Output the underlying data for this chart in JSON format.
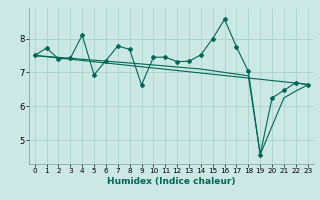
{
  "title": "",
  "xlabel": "Humidex (Indice chaleur)",
  "ylabel": "",
  "background_color": "#cce8e4",
  "grid_color": "#aad4cc",
  "line_color": "#006655",
  "xlim": [
    -0.5,
    23.5
  ],
  "ylim": [
    4.3,
    8.9
  ],
  "yticks": [
    5,
    6,
    7,
    8
  ],
  "xticks": [
    0,
    1,
    2,
    3,
    4,
    5,
    6,
    7,
    8,
    9,
    10,
    11,
    12,
    13,
    14,
    15,
    16,
    17,
    18,
    19,
    20,
    21,
    22,
    23
  ],
  "series1_x": [
    0,
    1,
    2,
    3,
    4,
    5,
    6,
    7,
    8,
    9,
    10,
    11,
    12,
    13,
    14,
    15,
    16,
    17,
    18,
    19,
    20,
    21,
    22,
    23
  ],
  "series1_y": [
    7.5,
    7.72,
    7.4,
    7.42,
    8.1,
    6.93,
    7.35,
    7.78,
    7.68,
    6.63,
    7.45,
    7.45,
    7.32,
    7.33,
    7.52,
    8.0,
    8.57,
    7.75,
    7.03,
    4.58,
    6.25,
    6.47,
    6.7,
    6.63
  ],
  "series2_x": [
    0,
    23
  ],
  "series2_y": [
    7.5,
    6.65
  ],
  "series3_x": [
    0,
    9,
    14,
    18,
    19,
    21,
    22,
    23
  ],
  "series3_y": [
    7.5,
    7.25,
    7.1,
    6.9,
    4.58,
    6.25,
    6.45,
    6.63
  ],
  "xlabel_fontsize": 6.5,
  "tick_fontsize": 5.2,
  "ytick_fontsize": 6.0
}
